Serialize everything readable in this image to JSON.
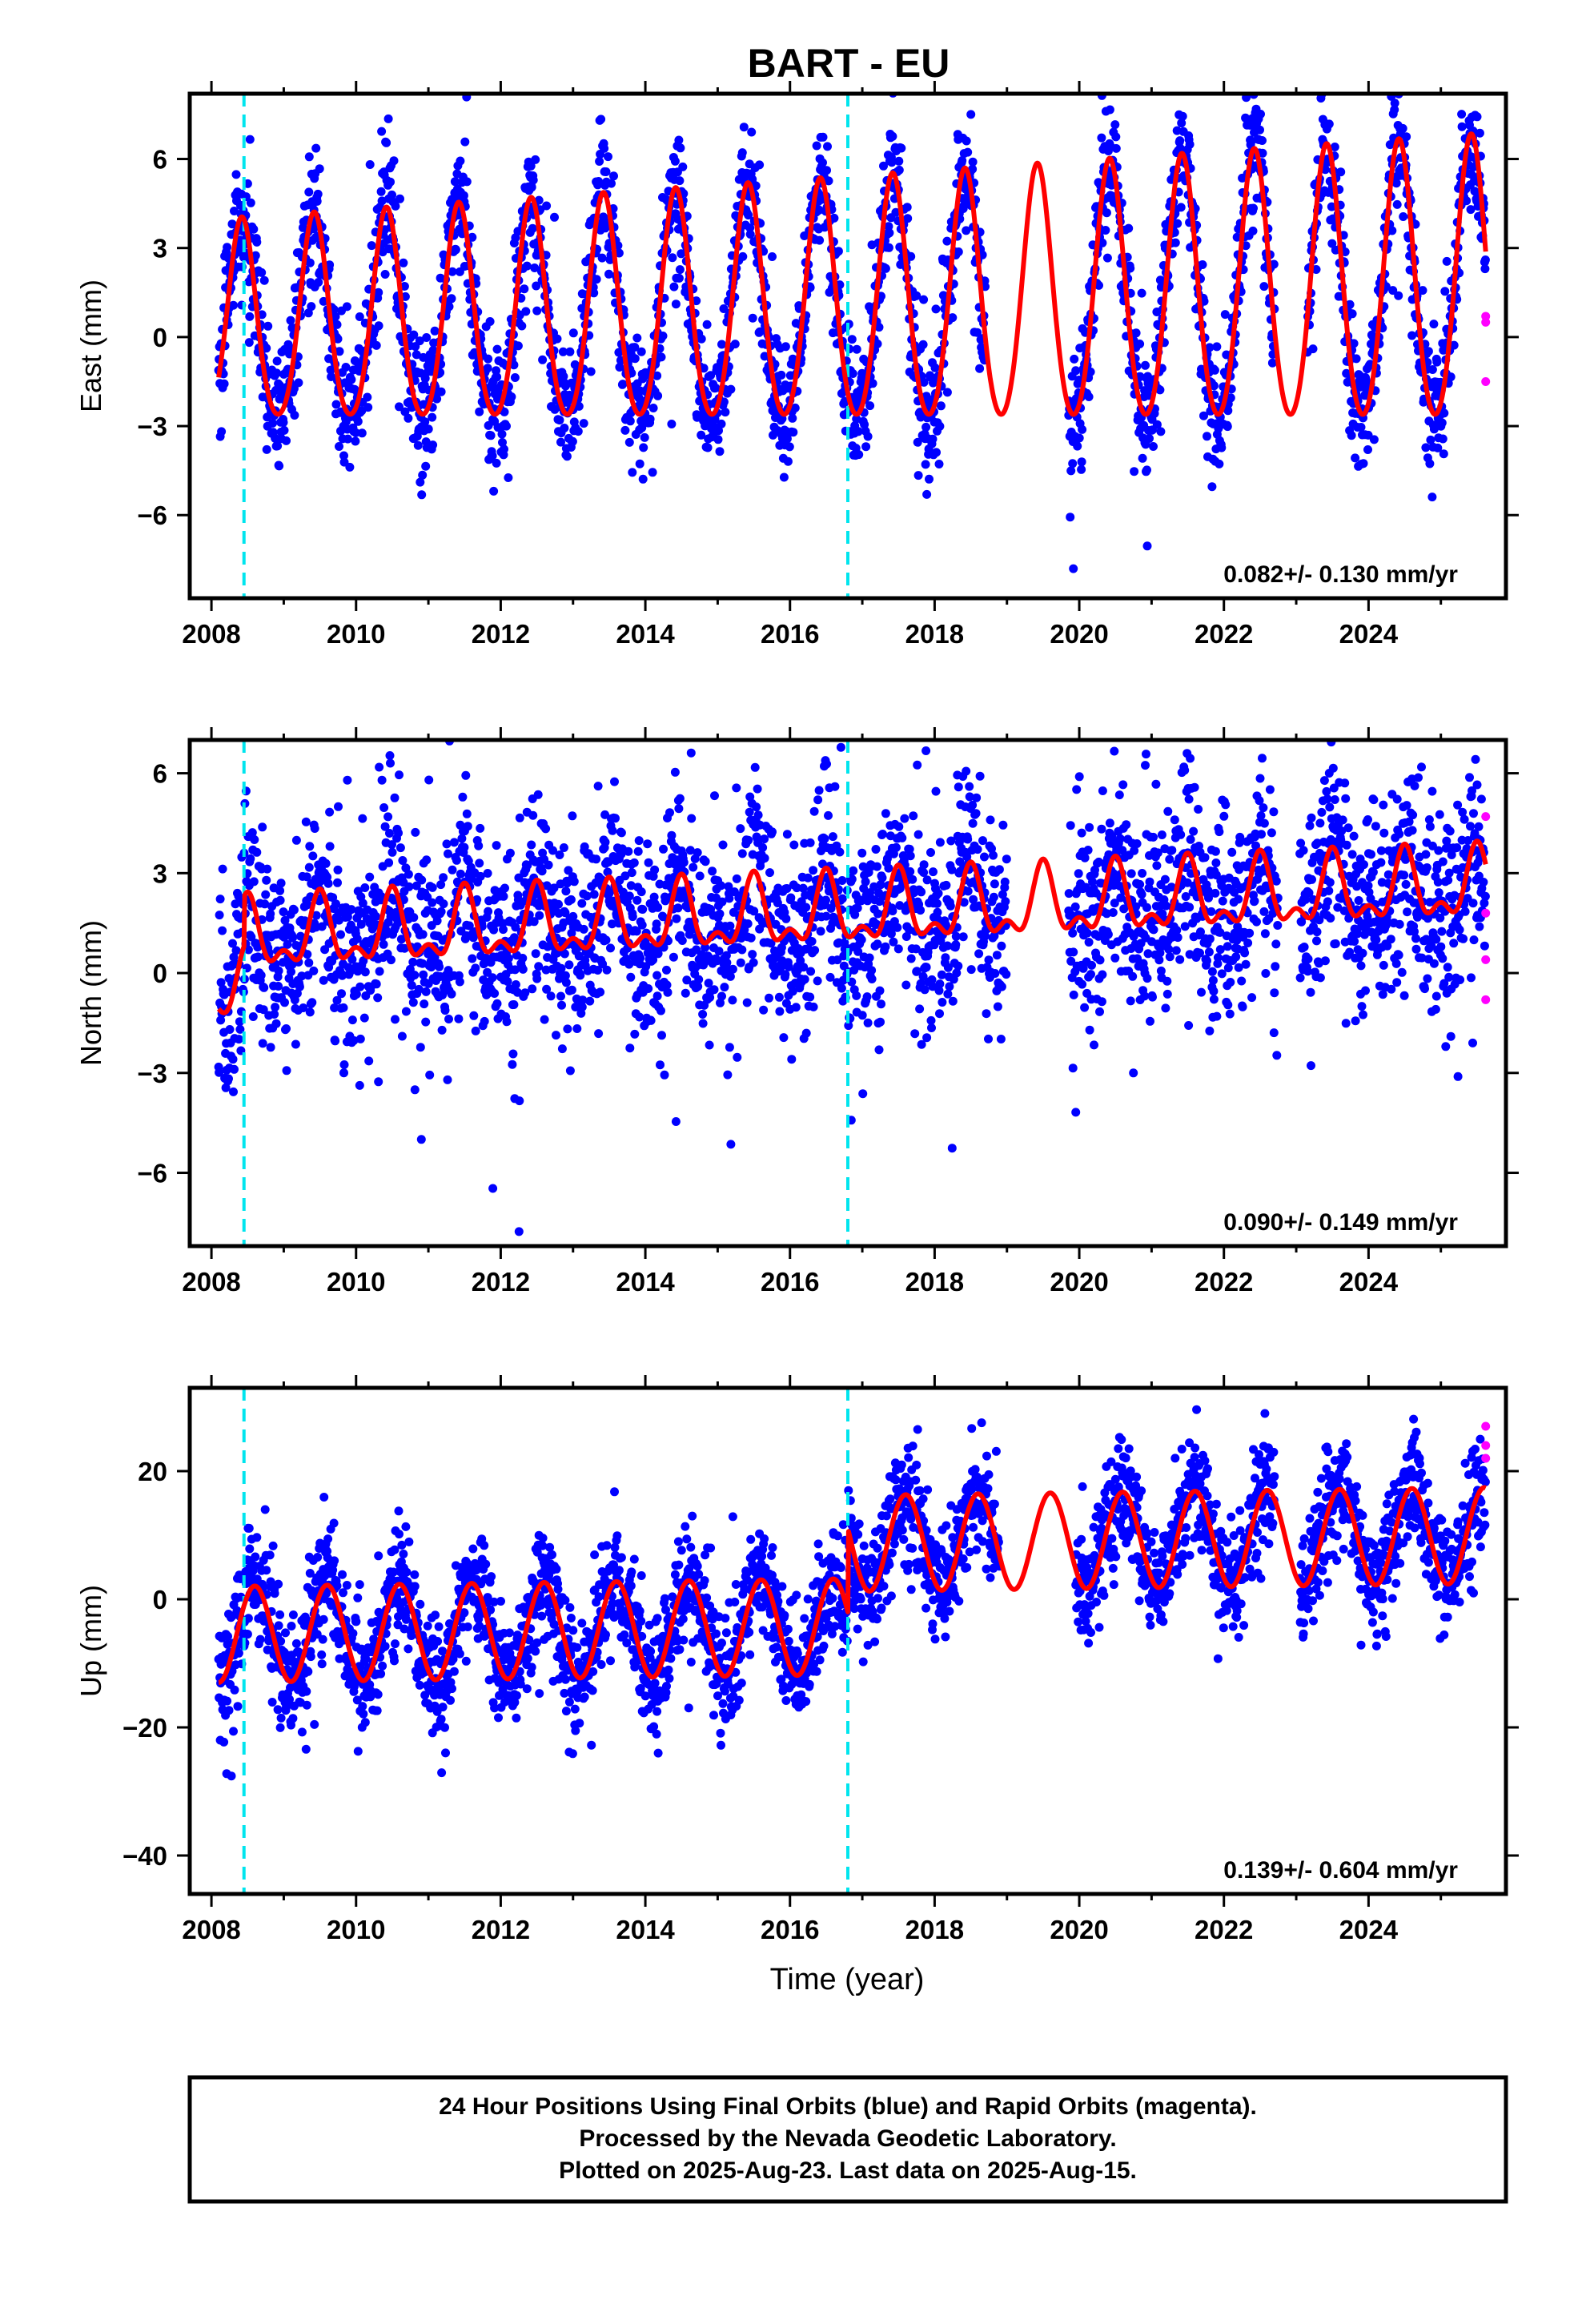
{
  "title": "BART - EU",
  "xlabel": "Time (year)",
  "caption": {
    "line1": "24 Hour Positions Using Final Orbits (blue) and Rapid Orbits (magenta).",
    "line2": "Processed by the Nevada Geodetic Laboratory.",
    "line3": "Plotted on 2025-Aug-23. Last data on 2025-Aug-15."
  },
  "colors": {
    "final_points": "#0000ff",
    "rapid_points": "#ff00ff",
    "model": "#ff0000",
    "breaks": "#00e5ee"
  },
  "chart_data": [
    {
      "type": "scatter",
      "name": "East",
      "ylabel": "East (mm)",
      "rate": "0.082+/- 0.130 mm/yr",
      "xlim": [
        2007.7,
        2025.9
      ],
      "ylim": [
        -8.8,
        8.2
      ],
      "yticks": [
        6,
        3,
        0,
        -3,
        -6
      ],
      "ytick_labels": [
        "6",
        "3",
        "0",
        "−3",
        "−6"
      ],
      "xticks": [
        2008,
        2010,
        2012,
        2014,
        2016,
        2018,
        2020,
        2022,
        2024
      ],
      "xtick_labels": [
        "2008",
        "2010",
        "2012",
        "2014",
        "2016",
        "2018",
        "2020",
        "2022",
        "2024"
      ],
      "breaks": [
        2008.45,
        2016.8
      ],
      "data_start": 2008.1,
      "data_end": 2025.62,
      "gaps": [
        [
          2018.7,
          2019.85
        ],
        [
          2022.7,
          2023.15
        ]
      ],
      "model": {
        "offset": 0.3,
        "rate": 0.082,
        "annual_amp": 3.3,
        "annual_phase_peak": 0.42,
        "semiannual_amp": 0.4,
        "amp_trend": 0.025,
        "breaks": [],
        "offsets": []
      },
      "scatter_spread": 1.1,
      "rapid_points": [
        [
          2025.62,
          0.7
        ],
        [
          2025.62,
          0.5
        ],
        [
          2025.62,
          -1.5
        ]
      ]
    },
    {
      "type": "scatter",
      "name": "North",
      "ylabel": "North (mm)",
      "rate": "0.090+/- 0.149 mm/yr",
      "xlim": [
        2007.7,
        2025.9
      ],
      "ylim": [
        -8.2,
        7.0
      ],
      "yticks": [
        6,
        3,
        0,
        -3,
        -6
      ],
      "ytick_labels": [
        "6",
        "3",
        "0",
        "−3",
        "−6"
      ],
      "xticks": [
        2008,
        2010,
        2012,
        2014,
        2016,
        2018,
        2020,
        2022,
        2024
      ],
      "xtick_labels": [
        "2008",
        "2010",
        "2012",
        "2014",
        "2016",
        "2018",
        "2020",
        "2022",
        "2024"
      ],
      "breaks": [
        2008.45,
        2016.8
      ],
      "data_start": 2008.1,
      "data_end": 2025.62,
      "gaps": [
        [
          2019.0,
          2019.85
        ],
        [
          2022.75,
          2023.05
        ]
      ],
      "model": {
        "offset": -0.5,
        "rate": 0.09,
        "annual_amp": 0.9,
        "annual_phase_peak": 0.5,
        "semiannual_amp": 0.5,
        "amp_trend": 0.0,
        "breaks": [
          2008.45
        ],
        "offsets": [
          1.5
        ]
      },
      "scatter_spread": 1.5,
      "rapid_points": [
        [
          2025.62,
          4.7
        ],
        [
          2025.62,
          1.8
        ],
        [
          2025.62,
          0.4
        ],
        [
          2025.62,
          -0.8
        ]
      ]
    },
    {
      "type": "scatter",
      "name": "Up",
      "ylabel": "Up (mm)",
      "rate": "0.139+/- 0.604 mm/yr",
      "xlim": [
        2007.7,
        2025.9
      ],
      "ylim": [
        -46,
        33
      ],
      "yticks": [
        20,
        0,
        -20,
        -40
      ],
      "ytick_labels": [
        "20",
        "0",
        "−20",
        "−40"
      ],
      "xticks": [
        2008,
        2010,
        2012,
        2014,
        2016,
        2018,
        2020,
        2022,
        2024
      ],
      "xtick_labels": [
        "2008",
        "2010",
        "2012",
        "2014",
        "2016",
        "2018",
        "2020",
        "2022",
        "2024"
      ],
      "breaks": [
        2008.45,
        2016.8
      ],
      "data_start": 2008.1,
      "data_end": 2025.62,
      "gaps": [
        [
          2018.9,
          2019.95
        ],
        [
          2022.7,
          2023.05
        ]
      ],
      "model": {
        "offset": -5.5,
        "rate": 0.139,
        "annual_amp": 7.5,
        "annual_phase_peak": 0.6,
        "semiannual_amp": 0.0,
        "amp_trend": 0.0,
        "breaks": [
          2016.8
        ],
        "offsets": [
          13.0
        ]
      },
      "scatter_spread": 4.5,
      "rapid_points": [
        [
          2025.62,
          27
        ],
        [
          2025.62,
          24
        ],
        [
          2025.62,
          22
        ]
      ]
    }
  ]
}
